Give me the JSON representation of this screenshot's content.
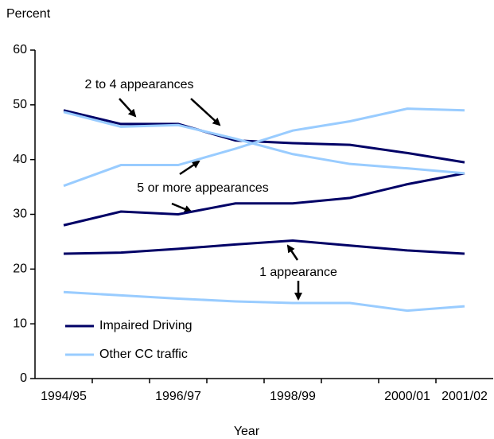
{
  "chart_data": {
    "type": "line",
    "y_label": "Percent",
    "x_label": "Year",
    "categories": [
      "1994/95",
      null,
      "1996/97",
      null,
      "1998/99",
      null,
      "2000/01",
      "2001/02"
    ],
    "series": [
      {
        "name": "Impaired Driving",
        "color": "#000066",
        "lines": [
          [
            49,
            46.5,
            46.5,
            43.5,
            43,
            42.7,
            41.2,
            39.5
          ],
          [
            28,
            30.5,
            30,
            32,
            32,
            33,
            35.5,
            37.5
          ],
          [
            22.8,
            23,
            23.7,
            24.5,
            25.2,
            24.3,
            23.4,
            22.8
          ]
        ]
      },
      {
        "name": "Other CC traffic",
        "color": "#99ccff",
        "lines": [
          [
            48.7,
            46,
            46.3,
            43.8,
            41,
            39.2,
            38.4,
            37.5
          ],
          [
            35.2,
            39,
            39,
            42,
            45.3,
            47,
            49.3,
            49
          ],
          [
            15.8,
            15.2,
            14.6,
            14.1,
            13.8,
            13.8,
            12.4,
            13.2
          ]
        ]
      }
    ],
    "annotations": [
      "2 to 4 appearances",
      "5 or more appearances",
      "1 appearance"
    ],
    "ylim": [
      0,
      60
    ],
    "yticks": [
      0,
      10,
      20,
      30,
      40,
      50,
      60
    ]
  }
}
